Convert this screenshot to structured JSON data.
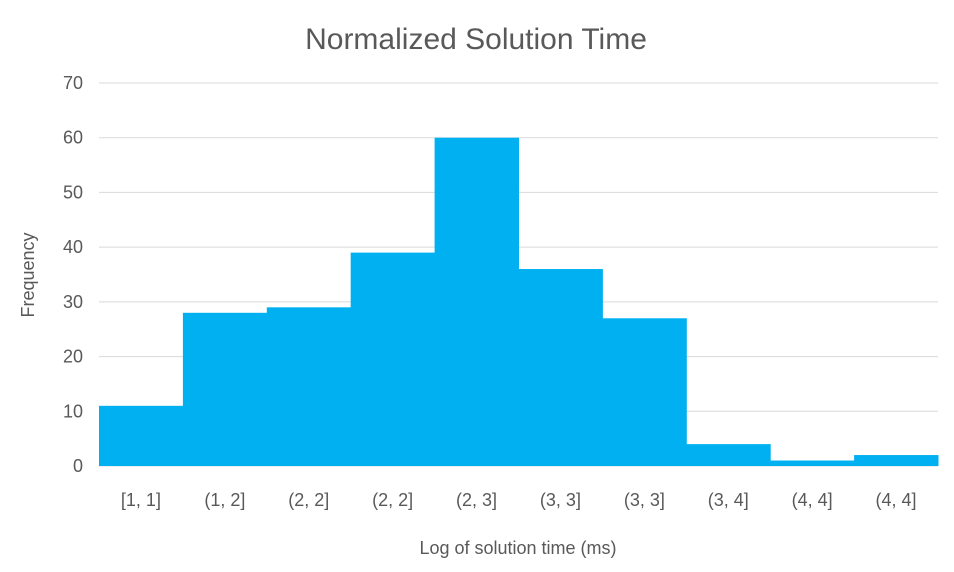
{
  "chart_data": {
    "type": "bar",
    "title": "Normalized Solution Time",
    "xlabel": "Log of solution time (ms)",
    "ylabel": "Frequency",
    "categories": [
      "[1, 1]",
      "(1, 2]",
      "(2, 2]",
      "(2, 2]",
      "(2, 3]",
      "(3, 3]",
      "(3, 3]",
      "(3, 4]",
      "(4, 4]",
      "(4, 4]"
    ],
    "values": [
      11,
      28,
      29,
      39,
      60,
      36,
      27,
      4,
      1,
      2
    ],
    "ylim": [
      0,
      70
    ],
    "yticks": [
      "0",
      "10",
      "20",
      "30",
      "40",
      "50",
      "60",
      "70"
    ],
    "grid": true,
    "legend": "none",
    "colors": {
      "bar": "#00b0f0",
      "grid": "#d9d9d9",
      "text": "#595959"
    }
  }
}
